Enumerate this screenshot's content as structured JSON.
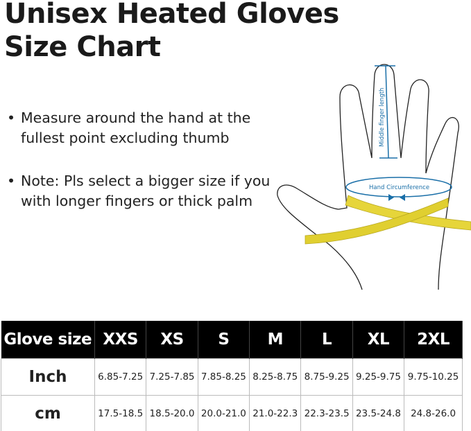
{
  "title_lines": [
    "Unisex Heated Gloves",
    "Size Chart"
  ],
  "bullets": [
    "Measure around the hand at the fullest point excluding thumb",
    "Note: Pls select a bigger size if you with longer fingers or thick palm"
  ],
  "illustration": {
    "finger_label": "Middle finger length",
    "circumference_label": "Hand Circumference",
    "accent_color": "#1a6fa8",
    "tape_color": "#e6d53a"
  },
  "table": {
    "header_label": "Glove size",
    "sizes": [
      "XXS",
      "XS",
      "S",
      "M",
      "L",
      "XL",
      "2XL"
    ],
    "rows": [
      {
        "label": "Inch",
        "values": [
          "6.85-7.25",
          "7.25-7.85",
          "7.85-8.25",
          "8.25-8.75",
          "8.75-9.25",
          "9.25-9.75",
          "9.75-10.25"
        ]
      },
      {
        "label": "cm",
        "values": [
          "17.5-18.5",
          "18.5-20.0",
          "20.0-21.0",
          "21.0-22.3",
          "22.3-23.5",
          "23.5-24.8",
          "24.8-26.0"
        ]
      }
    ]
  }
}
